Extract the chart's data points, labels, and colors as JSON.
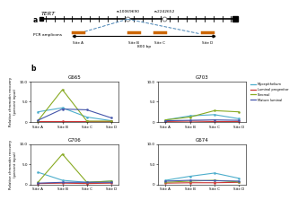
{
  "panel_a": {
    "label": "a",
    "gene_label": "TERT",
    "snp1": "rs10069690",
    "snp2": "rs2242652",
    "sites": [
      "Site A",
      "Site B",
      "Site C",
      "Site D"
    ],
    "amplicon_label": "PCR amplicons",
    "scale_label": "800 bp"
  },
  "panel_b": {
    "label": "b",
    "subplots": [
      {
        "title": "G665",
        "ylim": [
          0,
          10.0
        ],
        "yticks": [
          0,
          5.0,
          10.0
        ],
        "data": {
          "Myoepithelium": [
            2.5,
            3.5,
            1.2,
            0.3
          ],
          "Luminal progenitor": [
            0.1,
            0.1,
            0.1,
            0.1
          ],
          "Stromal": [
            0.3,
            8.0,
            0.2,
            0.2
          ],
          "Mature luminal": [
            0.4,
            3.2,
            3.0,
            1.0
          ]
        }
      },
      {
        "title": "G703",
        "ylim": [
          0,
          10.0
        ],
        "yticks": [
          0,
          5.0,
          10.0
        ],
        "show_legend": true,
        "data": {
          "Myoepithelium": [
            0.5,
            1.5,
            1.8,
            0.8
          ],
          "Luminal progenitor": [
            0.1,
            0.2,
            0.1,
            0.1
          ],
          "Stromal": [
            0.5,
            1.2,
            2.8,
            2.5
          ],
          "Mature luminal": [
            0.3,
            0.4,
            0.5,
            0.4
          ]
        }
      },
      {
        "title": "G706",
        "ylim": [
          0,
          10.0
        ],
        "yticks": [
          0,
          5.0,
          10.0
        ],
        "data": {
          "Myoepithelium": [
            3.0,
            1.0,
            0.5,
            0.8
          ],
          "Luminal progenitor": [
            0.2,
            0.3,
            0.2,
            0.3
          ],
          "Stromal": [
            0.5,
            7.5,
            0.5,
            0.8
          ],
          "Mature luminal": [
            0.3,
            0.5,
            0.5,
            0.5
          ]
        }
      },
      {
        "title": "G674",
        "ylim": [
          0,
          10.0
        ],
        "yticks": [
          0,
          5.0,
          10.0
        ],
        "data": {
          "Myoepithelium": [
            1.0,
            2.0,
            2.8,
            1.5
          ],
          "Luminal progenitor": [
            0.3,
            0.4,
            0.4,
            0.5
          ],
          "Stromal": [
            0.5,
            0.8,
            1.0,
            0.6
          ],
          "Mature luminal": [
            0.8,
            1.0,
            0.9,
            0.8
          ]
        }
      }
    ],
    "sites": [
      "Site A",
      "Site B",
      "Site C",
      "Site D"
    ],
    "colors": {
      "Myoepithelium": "#4DAECC",
      "Luminal progenitor": "#CC3333",
      "Stromal": "#88AA22",
      "Mature luminal": "#4455AA"
    },
    "ylabel": "Relative chromatin recovery\n(percent input)"
  },
  "background": "#ffffff"
}
